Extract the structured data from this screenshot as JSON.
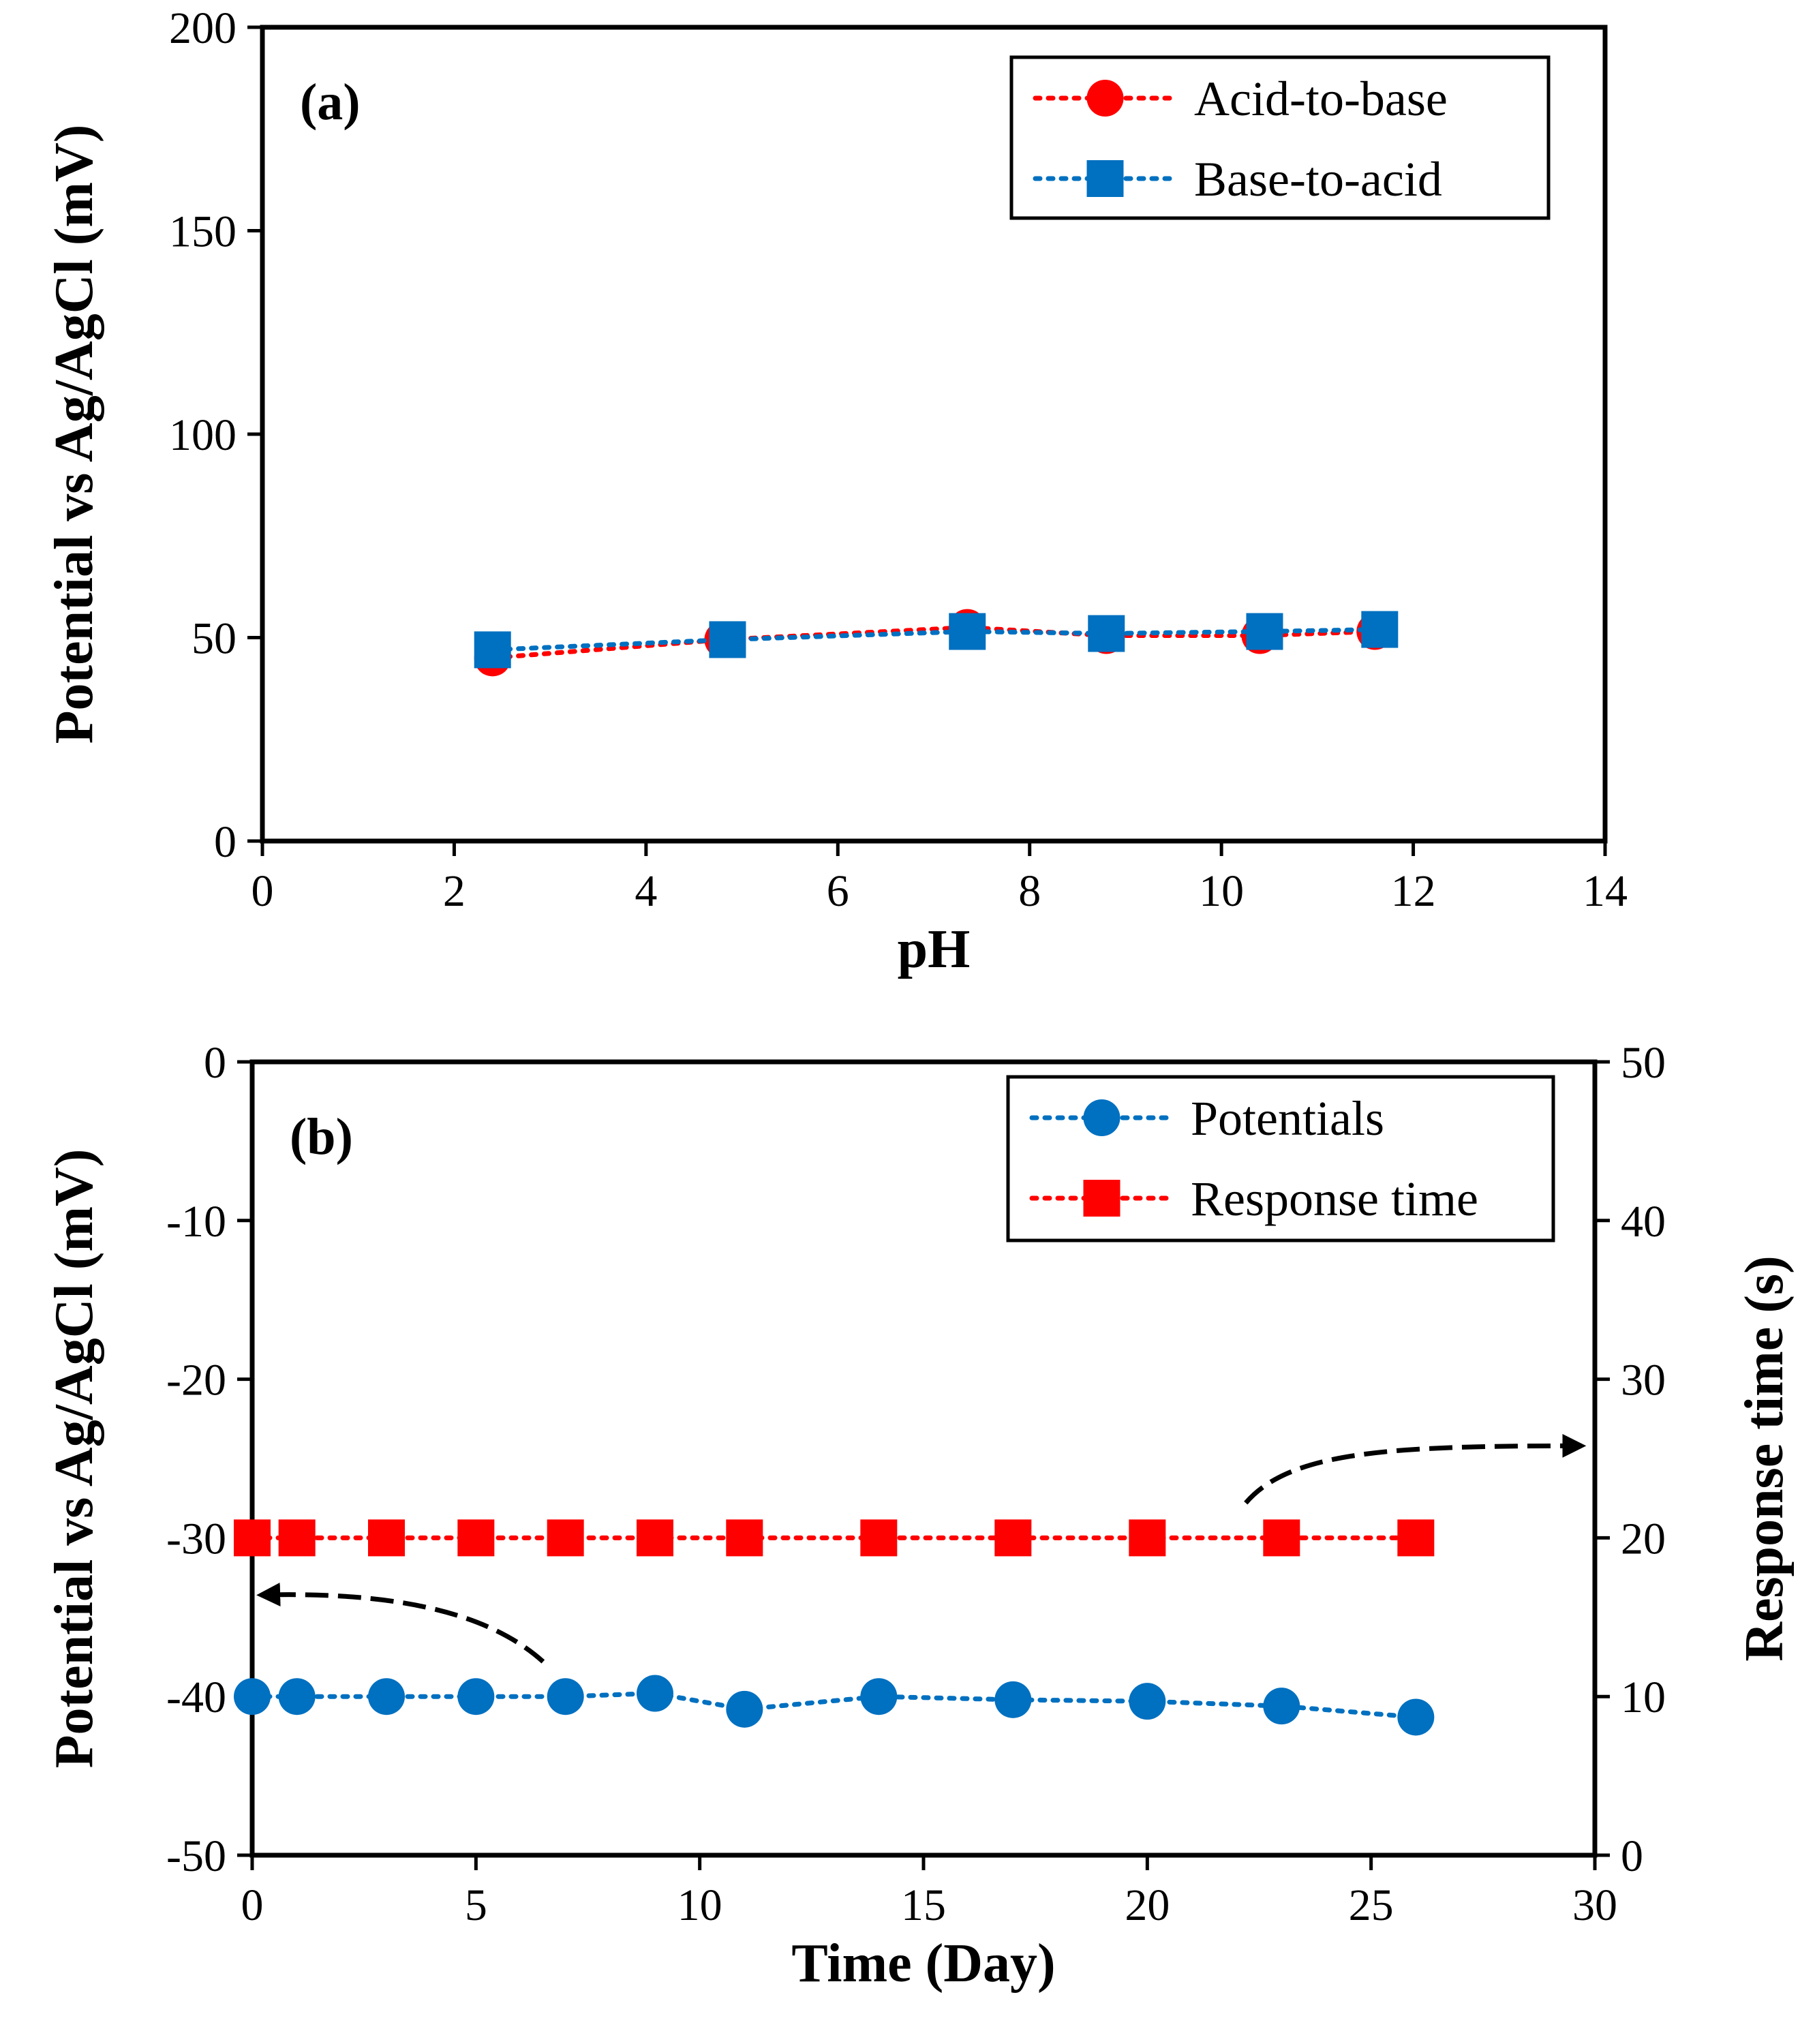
{
  "chart_data": [
    {
      "id": "a",
      "type": "line",
      "panel_label": "(a)",
      "xlabel": "pH",
      "ylabel": "Potential vs Ag/AgCl (mV)",
      "xlim": [
        0,
        14
      ],
      "ylim": [
        0,
        200
      ],
      "xticks": [
        0,
        2,
        4,
        6,
        8,
        10,
        12,
        14
      ],
      "yticks": [
        0,
        50,
        100,
        150,
        200
      ],
      "grid": false,
      "legend_position": "top-right",
      "series": [
        {
          "name": "Acid-to-base",
          "color": "#ff0000",
          "marker": "circle",
          "line": "dotted",
          "x": [
            2.4,
            4.8,
            7.35,
            8.8,
            10.4,
            11.6
          ],
          "y": [
            45,
            49.5,
            52.5,
            50.5,
            50.5,
            51.5
          ]
        },
        {
          "name": "Base-to-acid",
          "color": "#0070c0",
          "marker": "square",
          "line": "dotted",
          "x": [
            2.4,
            4.85,
            7.35,
            8.8,
            10.45,
            11.65
          ],
          "y": [
            47,
            49.5,
            51.5,
            51,
            51.5,
            52
          ]
        }
      ]
    },
    {
      "id": "b",
      "type": "line",
      "panel_label": "(b)",
      "xlabel": "Time (Day)",
      "ylabel": "Potential vs Ag/AgCl (mV)",
      "y2label": "Response time (s)",
      "xlim": [
        0,
        30
      ],
      "ylim": [
        -50,
        0
      ],
      "y2lim": [
        0,
        50
      ],
      "xticks": [
        0,
        5,
        10,
        15,
        20,
        25,
        30
      ],
      "yticks": [
        -50,
        -40,
        -30,
        -20,
        -10,
        0
      ],
      "y2ticks": [
        0,
        10,
        20,
        30,
        40,
        50
      ],
      "grid": false,
      "legend_position": "top-right",
      "series": [
        {
          "name": "Potentials",
          "axis": "left",
          "color": "#0070c0",
          "marker": "circle",
          "line": "dotted",
          "x": [
            0,
            1,
            3,
            5,
            7,
            9,
            11,
            14,
            17,
            20,
            23,
            26
          ],
          "y": [
            -40,
            -40,
            -40,
            -40,
            -40,
            -39.8,
            -40.8,
            -40,
            -40.2,
            -40.3,
            -40.6,
            -41.3
          ]
        },
        {
          "name": "Response time",
          "axis": "right",
          "color": "#ff0000",
          "marker": "square",
          "line": "dotted",
          "x": [
            0,
            1,
            3,
            5,
            7,
            9,
            11,
            14,
            17,
            20,
            23,
            26
          ],
          "y": [
            20,
            20,
            20,
            20,
            20,
            20,
            20,
            20,
            20,
            20,
            20,
            20
          ]
        }
      ],
      "annotations": [
        {
          "type": "arrow",
          "points_to": "left-axis",
          "from_series": "Potentials"
        },
        {
          "type": "arrow",
          "points_to": "right-axis",
          "from_series": "Response time"
        }
      ]
    }
  ]
}
